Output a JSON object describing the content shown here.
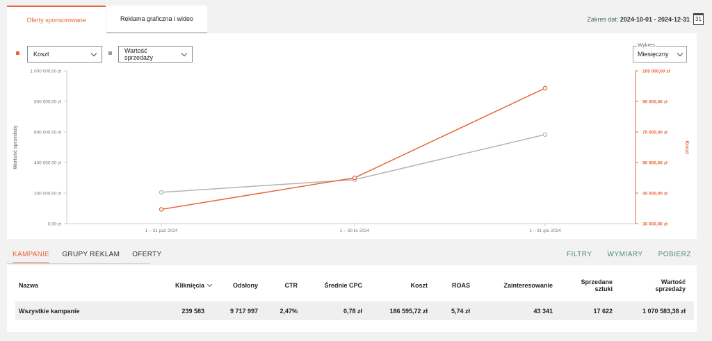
{
  "tabs": [
    {
      "label": "Oferty sponsorowane",
      "active": true
    },
    {
      "label": "Reklama graficzna i wideo",
      "active": false
    }
  ],
  "date_range": {
    "label": "Zakres dat:",
    "value": "2024-10-01 - 2024-12-31",
    "icon": "calendar-icon",
    "icon_text": "31"
  },
  "chart_controls": {
    "metric1": {
      "value": "Koszt",
      "color": "#e8663a"
    },
    "metric2": {
      "value": "Wartość sprzedaży",
      "color": "#999999"
    },
    "granularity": {
      "label": "Wykres",
      "value": "Miesięczny"
    }
  },
  "chart_data": {
    "type": "line",
    "categories": [
      "1 – 31 paź 2024",
      "1 – 30 lis 2024",
      "1 – 31 gru 2024"
    ],
    "series": [
      {
        "name": "Wartość sprzedaży",
        "axis": "left",
        "color": "#b3b3b3",
        "values": [
          205000,
          288000,
          583000
        ]
      },
      {
        "name": "Koszt",
        "axis": "right",
        "color": "#e8663a",
        "values": [
          37000,
          52500,
          96500
        ]
      }
    ],
    "y_left": {
      "label": "Wartość sprzedaży",
      "min": 0,
      "max": 1000000,
      "ticks": [
        0,
        200000,
        400000,
        600000,
        800000,
        1000000
      ],
      "tick_labels": [
        "0,00 zł",
        "200 000,00 zł",
        "400 000,00 zł",
        "600 000,00 zł",
        "800 000,00 zł",
        "1 000 000,00 zł"
      ]
    },
    "y_right": {
      "label": "Koszt",
      "min": 30000,
      "max": 105000,
      "ticks": [
        30000,
        45000,
        60000,
        75000,
        90000,
        105000
      ],
      "tick_labels": [
        "30 000,00 zł",
        "45 000,00 zł",
        "60 000,00 zł",
        "75 000,00 zł",
        "90 000,00 zł",
        "105 000,00 zł"
      ]
    },
    "grid": false
  },
  "bottom_tabs": [
    {
      "label": "KAMPANIE",
      "active": true
    },
    {
      "label": "GRUPY REKLAM",
      "active": false
    },
    {
      "label": "OFERTY",
      "active": false
    }
  ],
  "actions": {
    "filters": "FILTRY",
    "dimensions": "WYMIARY",
    "download": "POBIERZ"
  },
  "table": {
    "columns": [
      "Nazwa",
      "Kliknięcia",
      "Odsłony",
      "CTR",
      "Średnie CPC",
      "Koszt",
      "ROAS",
      "Zainteresowanie",
      "Sprzedane sztuki",
      "Wartość sprzedaży"
    ],
    "columns_split": {
      "sold_1": "Sprzedane",
      "sold_2": "sztuki",
      "value_1": "Wartość",
      "value_2": "sprzedaży"
    },
    "rows": [
      [
        "Wszystkie kampanie",
        "239 583",
        "9 717 997",
        "2,47%",
        "0,78 zł",
        "186 595,72 zł",
        "5,74 zł",
        "43 341",
        "17 622",
        "1 070 583,38 zł"
      ]
    ]
  }
}
